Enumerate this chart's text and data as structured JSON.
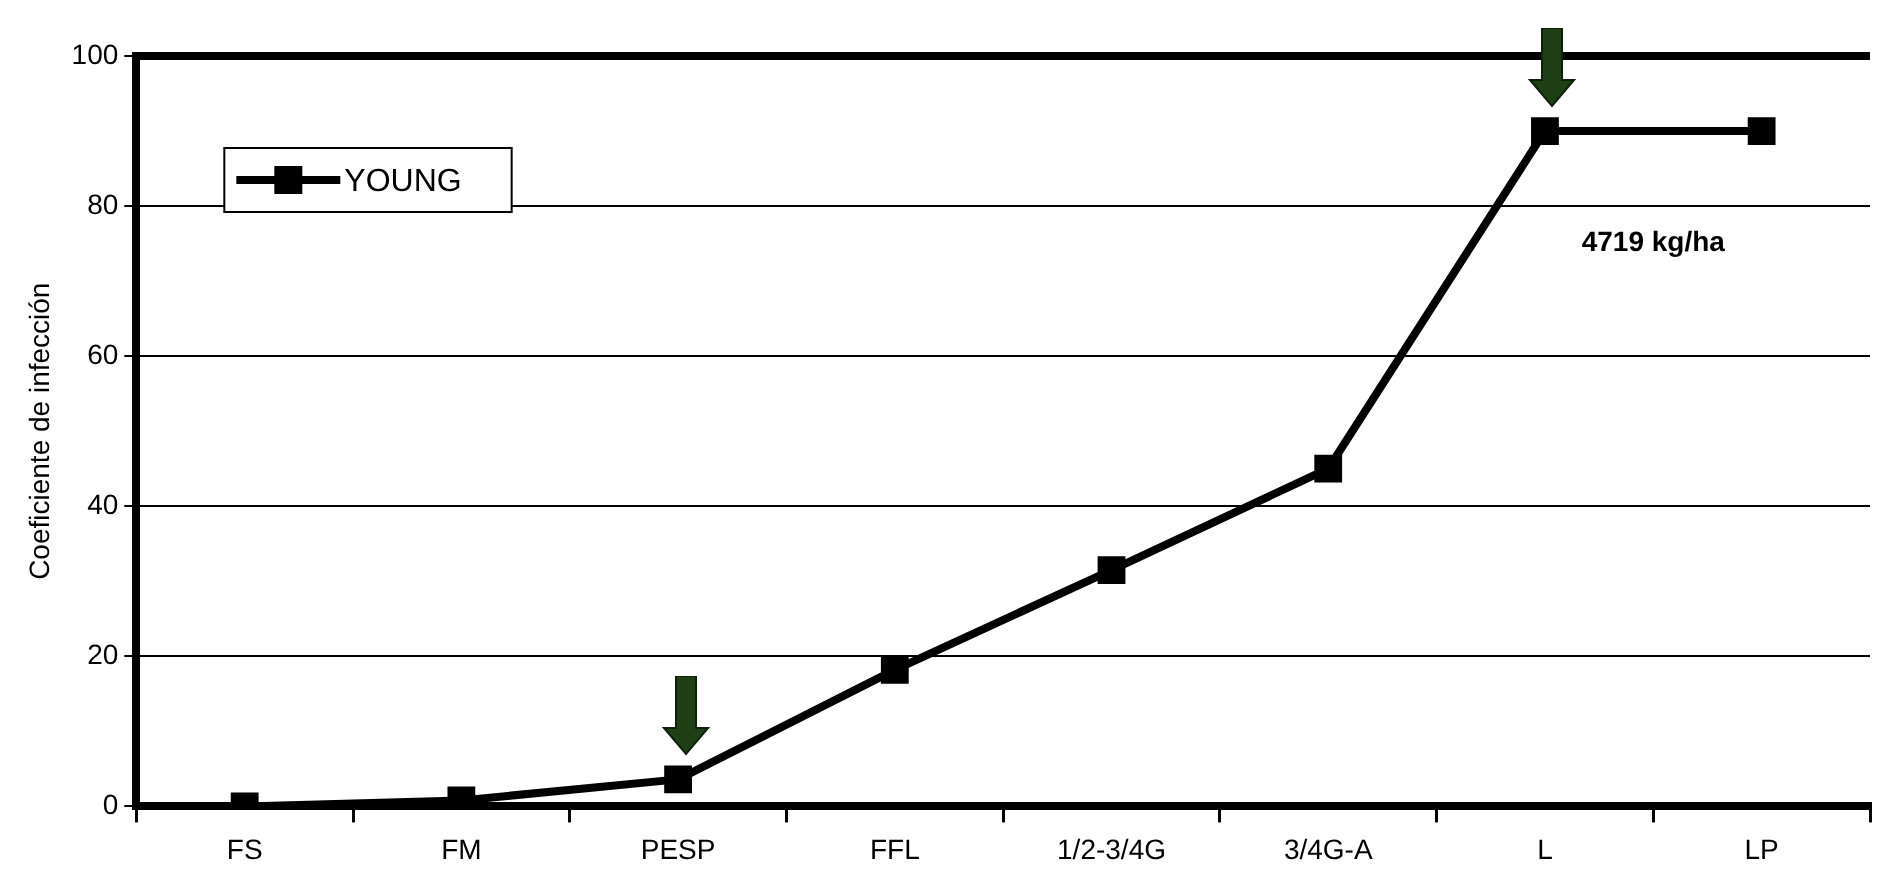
{
  "chart_data": {
    "type": "line",
    "ylabel": "Coeficiente de infección",
    "categories": [
      "FS",
      "FM",
      "PESP",
      "FFL",
      "1/2-3/4G",
      "3/4G-A",
      "L",
      "LP"
    ],
    "series": [
      {
        "name": "YOUNG",
        "color": "#000000",
        "values": [
          0,
          0.8,
          3.6,
          18.2,
          31.5,
          45,
          90,
          90
        ]
      }
    ],
    "ylim": [
      0,
      100
    ],
    "yticks": [
      0,
      20,
      40,
      60,
      80,
      100
    ],
    "grid": "y",
    "legend": "top left",
    "marker": "square",
    "line_style": "solid",
    "annotations": [
      "4719 kg/ha"
    ]
  }
}
